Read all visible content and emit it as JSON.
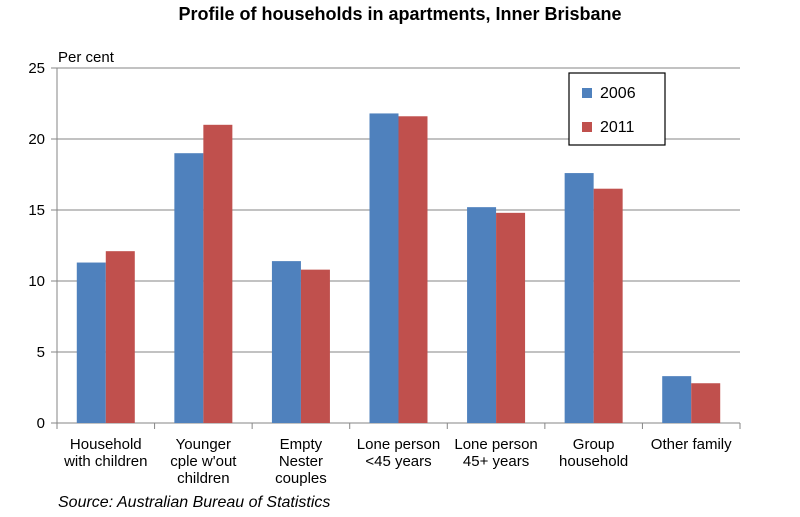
{
  "chart_data": {
    "type": "bar",
    "title": "Profile of households in apartments, Inner Brisbane",
    "ylabel": "Per cent",
    "xlabel": "",
    "ylim": [
      0,
      25
    ],
    "yticks": [
      0,
      5,
      10,
      15,
      20,
      25
    ],
    "grid": true,
    "legend_position": "top-right",
    "categories": [
      [
        "Household",
        "with children"
      ],
      [
        "Younger",
        "cple w'out",
        "children"
      ],
      [
        "Empty",
        "Nester",
        "couples"
      ],
      [
        "Lone person",
        "<45 years"
      ],
      [
        "Lone person",
        "45+ years"
      ],
      [
        "Group",
        "household"
      ],
      [
        "Other family"
      ]
    ],
    "series": [
      {
        "name": "2006",
        "color": "#4F81BD",
        "values": [
          11.3,
          19.0,
          11.4,
          21.8,
          15.2,
          17.6,
          3.3
        ]
      },
      {
        "name": "2011",
        "color": "#C0504D",
        "values": [
          12.1,
          21.0,
          10.8,
          21.6,
          14.8,
          16.5,
          2.8
        ]
      }
    ]
  },
  "source": "Source: Australian Bureau of Statistics"
}
